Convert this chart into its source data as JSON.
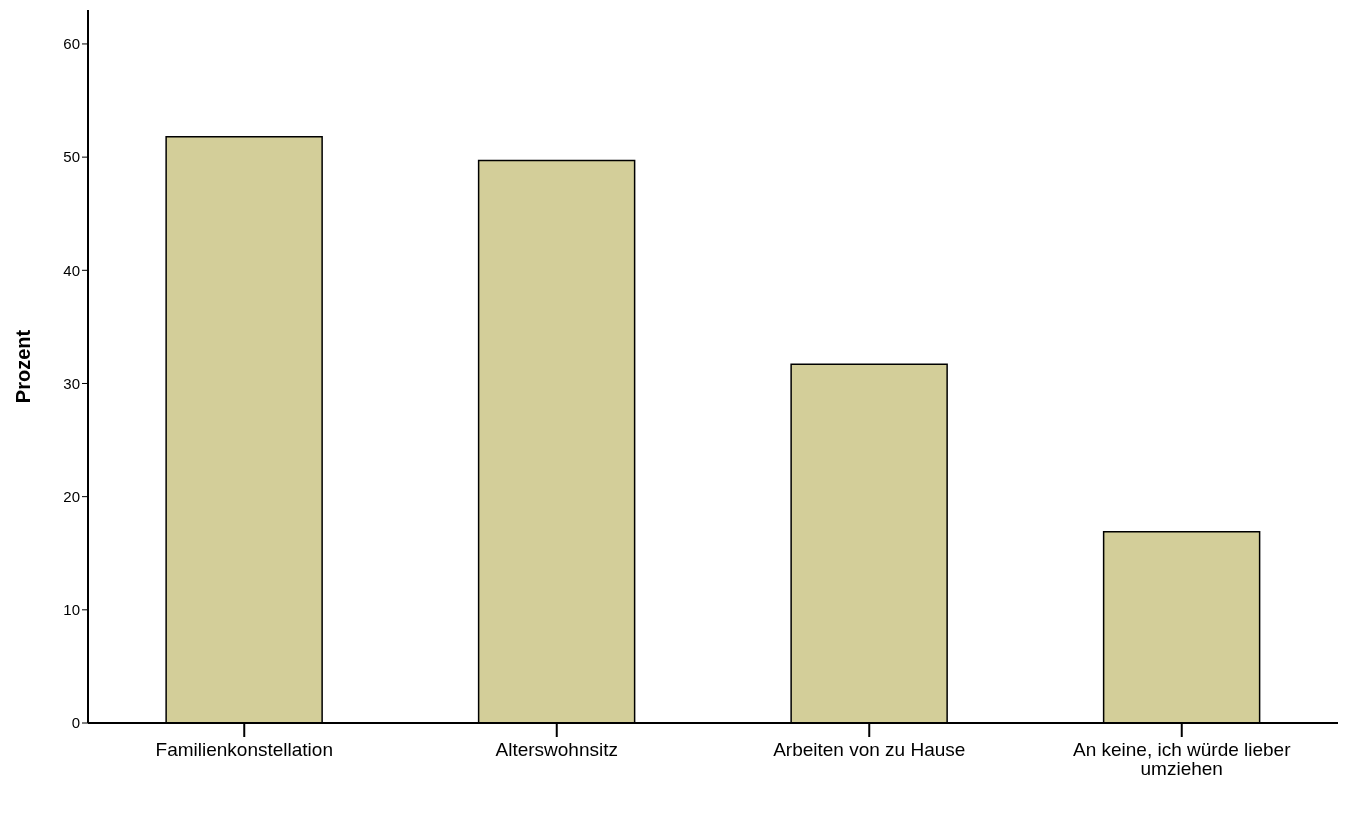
{
  "chart_data": {
    "type": "bar",
    "ylabel": "Prozent",
    "categories": [
      "Familienkonstellation",
      "Alterswohnsitz",
      "Arbeiten von zu Hause",
      "An keine, ich würde lieber umziehen"
    ],
    "values": [
      51.8,
      49.7,
      31.7,
      16.9
    ],
    "color": "#d3ce99",
    "ylim": [
      0,
      63
    ],
    "yticks": [
      0,
      10,
      20,
      30,
      40,
      50,
      60
    ],
    "grid": false,
    "legend": false
  }
}
